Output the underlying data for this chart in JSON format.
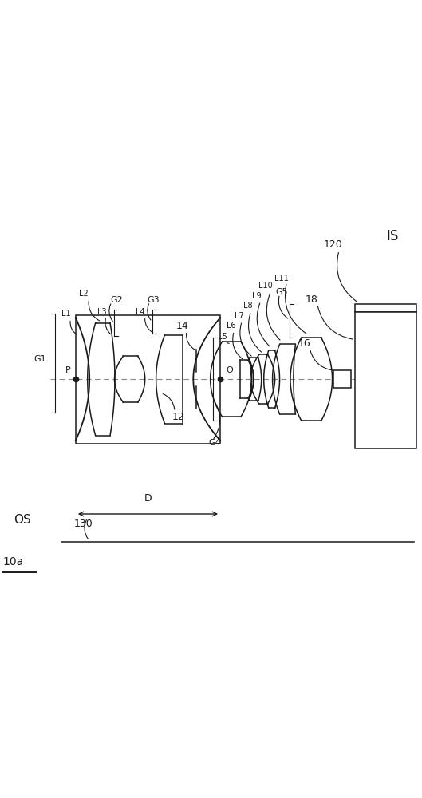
{
  "bg_color": "#ffffff",
  "line_color": "#1a1a1a",
  "dash_color": "#888888",
  "figsize": [
    5.29,
    10.0
  ],
  "dpi": 100,
  "xlim": [
    0,
    10.58
  ],
  "ylim": [
    -5.5,
    4.5
  ],
  "optical_axis_y": 0.0,
  "lw": 1.1
}
